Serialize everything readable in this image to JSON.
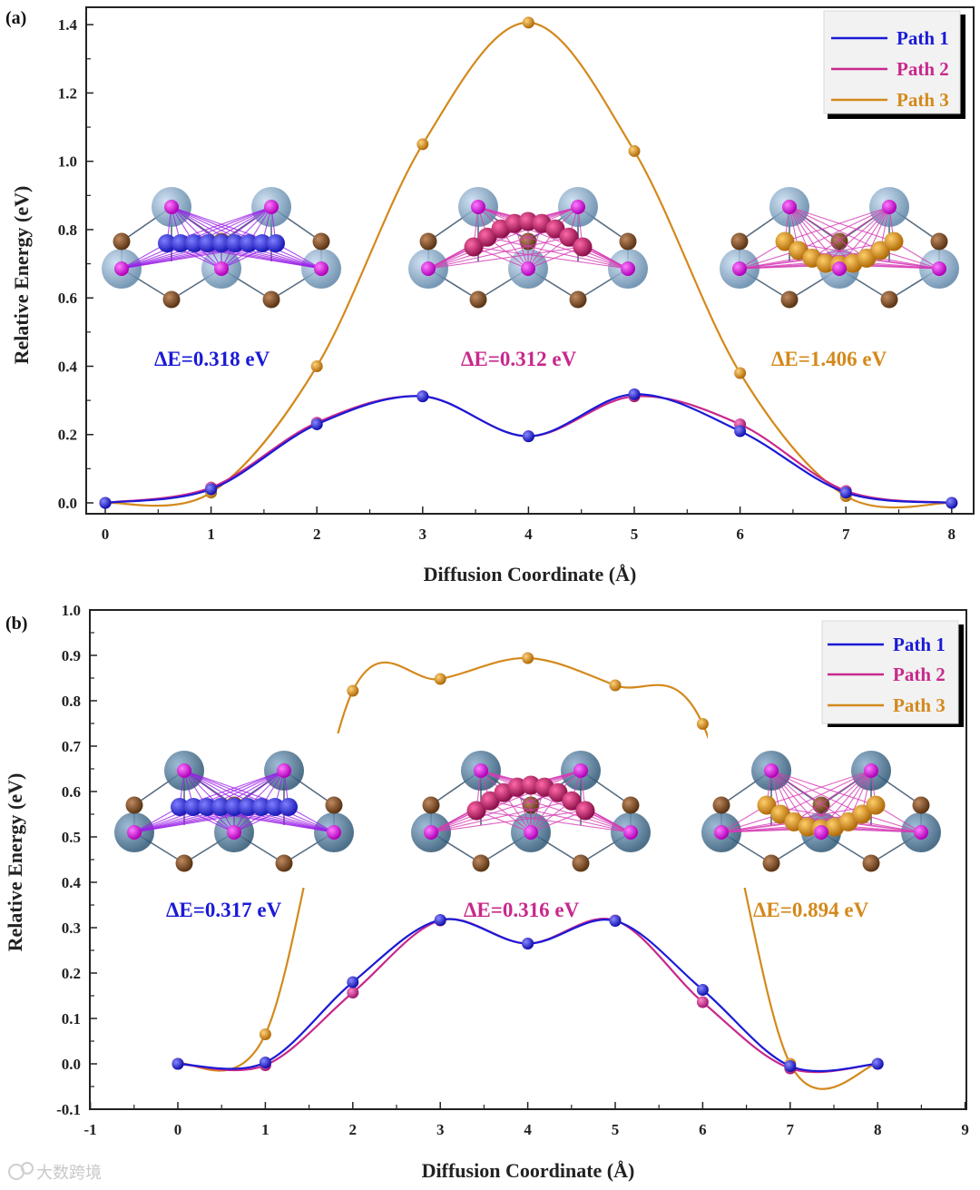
{
  "colors": {
    "path1": "#1a1ad6",
    "path2": "#c8288c",
    "path3": "#d4891c"
  },
  "watermark": "大数跨境",
  "chart_data": [
    {
      "panel": "(a)",
      "type": "line",
      "xlabel": "Diffusion Coordinate (Å)",
      "ylabel": "Relative Energy (eV)",
      "xlim": [
        -0.2,
        8.2
      ],
      "ylim": [
        -0.03,
        1.45
      ],
      "xticks": [
        "0",
        "1",
        "2",
        "3",
        "4",
        "5",
        "6",
        "7",
        "8"
      ],
      "yticks": [
        "0.0",
        "0.2",
        "0.4",
        "0.6",
        "0.8",
        "1.0",
        "1.2",
        "1.4"
      ],
      "x": [
        0,
        1,
        2,
        3,
        4,
        5,
        6,
        7,
        8
      ],
      "series": [
        {
          "name": "Path 1",
          "values": [
            0.0,
            0.04,
            0.23,
            0.312,
            0.195,
            0.318,
            0.21,
            0.03,
            0.0
          ]
        },
        {
          "name": "Path 2",
          "values": [
            0.0,
            0.045,
            0.235,
            0.312,
            0.195,
            0.312,
            0.23,
            0.035,
            0.0
          ]
        },
        {
          "name": "Path 3",
          "values": [
            0.0,
            0.03,
            0.4,
            1.05,
            1.406,
            1.03,
            0.38,
            0.02,
            0.0
          ]
        }
      ],
      "legend": [
        "Path 1",
        "Path 2",
        "Path 3"
      ],
      "annotations": [
        "ΔE=0.318 eV",
        "ΔE=0.312 eV",
        "ΔE=1.406 eV"
      ]
    },
    {
      "panel": "(b)",
      "type": "line",
      "xlabel": "Diffusion Coordinate (Å)",
      "ylabel": "Relative Energy (eV)",
      "xlim": [
        -1,
        9
      ],
      "ylim": [
        -0.1,
        1.0
      ],
      "xticks": [
        "-1",
        "0",
        "1",
        "2",
        "3",
        "4",
        "5",
        "6",
        "7",
        "8",
        "9"
      ],
      "yticks": [
        "-0.1",
        "0.0",
        "0.1",
        "0.2",
        "0.3",
        "0.4",
        "0.5",
        "0.6",
        "0.7",
        "0.8",
        "0.9",
        "1.0"
      ],
      "x": [
        0,
        1,
        2,
        3,
        4,
        5,
        6,
        7,
        8
      ],
      "series": [
        {
          "name": "Path 1",
          "values": [
            0.0,
            0.003,
            0.18,
            0.317,
            0.265,
            0.315,
            0.163,
            -0.005,
            0.0
          ]
        },
        {
          "name": "Path 2",
          "values": [
            0.0,
            -0.003,
            0.157,
            0.316,
            0.265,
            0.316,
            0.136,
            -0.01,
            0.0
          ]
        },
        {
          "name": "Path 3",
          "values": [
            0.0,
            0.065,
            0.822,
            0.848,
            0.894,
            0.834,
            0.749,
            0.0,
            0.0
          ]
        }
      ],
      "legend": [
        "Path 1",
        "Path 2",
        "Path 3"
      ],
      "annotations": [
        "ΔE=0.317 eV",
        "ΔE=0.316 eV",
        "ΔE=0.894 eV"
      ]
    }
  ]
}
